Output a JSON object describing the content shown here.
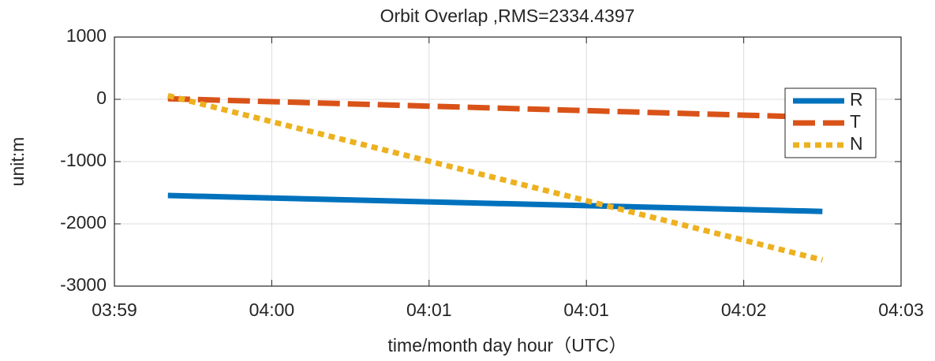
{
  "chart_data": {
    "type": "line",
    "title": "Orbit Overlap ,RMS=2334.4397",
    "xlabel": "time/month day hour（UTC）",
    "ylabel": "unit:m",
    "xlim": [
      0,
      5
    ],
    "xticks": [
      {
        "value": 0,
        "label": "03:59"
      },
      {
        "value": 1,
        "label": "04:00"
      },
      {
        "value": 2,
        "label": "04:01"
      },
      {
        "value": 3,
        "label": "04:01"
      },
      {
        "value": 4,
        "label": "04:02"
      },
      {
        "value": 5,
        "label": "04:03"
      }
    ],
    "ylim": [
      -3000,
      1000
    ],
    "yticks": [
      -3000,
      -2000,
      -1000,
      0,
      1000
    ],
    "grid": true,
    "legend": "upper right",
    "x": [
      0.34,
      4.5
    ],
    "series": [
      {
        "name": "R",
        "color": "#0072bd",
        "dash": "solid",
        "values": [
          -1545,
          -1800
        ]
      },
      {
        "name": "T",
        "color": "#d95319",
        "dash": "dashed",
        "values": [
          10,
          -290
        ]
      },
      {
        "name": "N",
        "color": "#edb120",
        "dash": "dotted",
        "values": [
          60,
          -2580
        ]
      }
    ]
  }
}
